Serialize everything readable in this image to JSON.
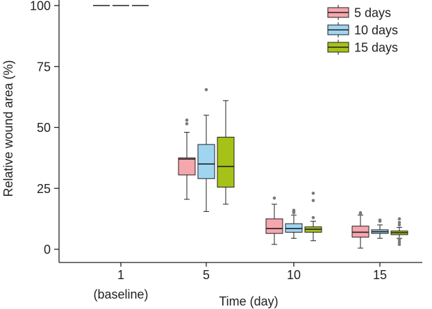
{
  "chart_data": {
    "type": "boxplot",
    "title": "",
    "xlabel": "Time (day)",
    "ylabel": "Relative wound area (%)",
    "ylim": [
      0,
      100
    ],
    "yticks": [
      0,
      25,
      50,
      75,
      100
    ],
    "categories": [
      {
        "label": "1",
        "sublabel": "(baseline)"
      },
      {
        "label": "5",
        "sublabel": ""
      },
      {
        "label": "10",
        "sublabel": ""
      },
      {
        "label": "15",
        "sublabel": ""
      }
    ],
    "legend_position": "top-right",
    "series": [
      {
        "name": "5 days",
        "color": "#f4a7ad",
        "boxes": [
          {
            "min": 100,
            "q1": 100,
            "median": 100,
            "q3": 100,
            "max": 100,
            "outliers": []
          },
          {
            "min": 20.5,
            "q1": 30.5,
            "median": 37,
            "q3": 37.5,
            "max": 48,
            "outliers": [
              51.5,
              53
            ]
          },
          {
            "min": 2,
            "q1": 6.5,
            "median": 8.5,
            "q3": 12.5,
            "max": 18.5,
            "outliers": [
              21
            ]
          },
          {
            "min": 0.5,
            "q1": 5,
            "median": 7,
            "q3": 9.5,
            "max": 14,
            "outliers": [
              14.5,
              15
            ]
          }
        ]
      },
      {
        "name": "10 days",
        "color": "#9fd5f1",
        "boxes": [
          {
            "min": 100,
            "q1": 100,
            "median": 100,
            "q3": 100,
            "max": 100,
            "outliers": []
          },
          {
            "min": 15.5,
            "q1": 29,
            "median": 35,
            "q3": 43,
            "max": 55,
            "outliers": [
              65.5
            ]
          },
          {
            "min": 4.5,
            "q1": 7,
            "median": 8.5,
            "q3": 10.5,
            "max": 14,
            "outliers": [
              15,
              15.5,
              16
            ]
          },
          {
            "min": 4.5,
            "q1": 6.5,
            "median": 7.2,
            "q3": 8,
            "max": 10,
            "outliers": [
              11.5,
              12
            ]
          }
        ]
      },
      {
        "name": "15 days",
        "color": "#a6c218",
        "boxes": [
          {
            "min": 100,
            "q1": 100,
            "median": 100,
            "q3": 100,
            "max": 100,
            "outliers": []
          },
          {
            "min": 18.5,
            "q1": 25.5,
            "median": 34,
            "q3": 46,
            "max": 61,
            "outliers": []
          },
          {
            "min": 3.5,
            "q1": 7,
            "median": 8.2,
            "q3": 9.2,
            "max": 11.5,
            "outliers": [
              13,
              20,
              23
            ]
          },
          {
            "min": 4.5,
            "q1": 6,
            "median": 6.8,
            "q3": 7.5,
            "max": 9,
            "outliers": [
              2,
              3,
              4,
              10,
              11,
              12.5
            ]
          }
        ]
      }
    ]
  }
}
